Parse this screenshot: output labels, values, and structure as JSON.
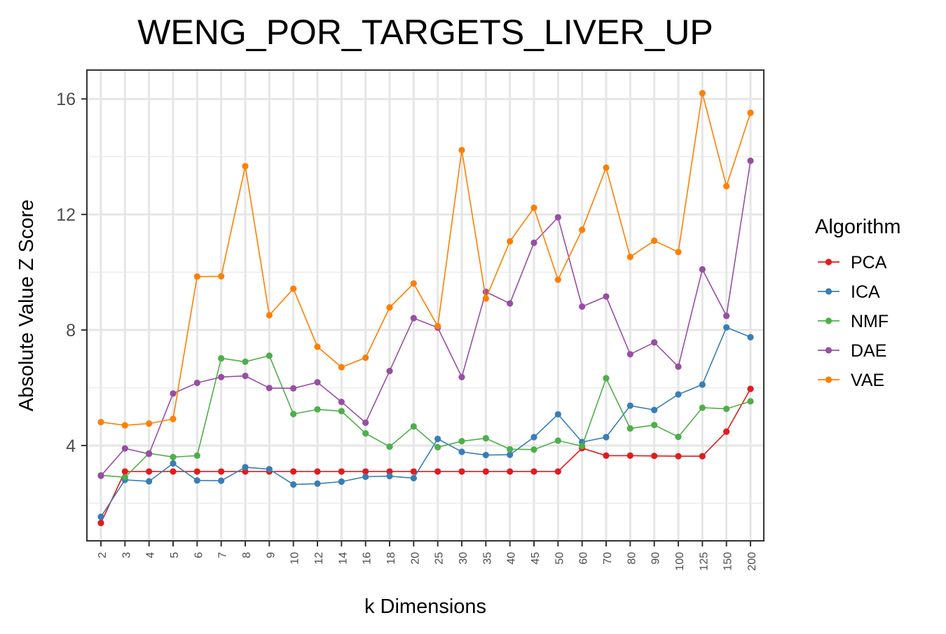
{
  "chart_data": {
    "type": "line",
    "title": "WENG_POR_TARGETS_LIVER_UP",
    "xlabel": "k Dimensions",
    "ylabel": "Absolute Value Z Score",
    "categories": [
      "2",
      "3",
      "4",
      "5",
      "6",
      "7",
      "8",
      "9",
      "10",
      "12",
      "14",
      "16",
      "18",
      "20",
      "25",
      "30",
      "35",
      "40",
      "45",
      "50",
      "60",
      "70",
      "80",
      "90",
      "100",
      "125",
      "150",
      "200"
    ],
    "ylim": [
      0.7,
      17
    ],
    "yticks": [
      4,
      8,
      12,
      16
    ],
    "grid": true,
    "legend": {
      "title": "Algorithm",
      "position": "right"
    },
    "series": [
      {
        "name": "PCA",
        "color": "#E41A1C",
        "values": [
          1.32,
          3.1,
          3.1,
          3.1,
          3.1,
          3.1,
          3.1,
          3.1,
          3.1,
          3.1,
          3.1,
          3.1,
          3.1,
          3.1,
          3.1,
          3.1,
          3.1,
          3.1,
          3.1,
          3.1,
          3.91,
          3.65,
          3.65,
          3.64,
          3.63,
          3.63,
          4.48,
          5.96
        ]
      },
      {
        "name": "ICA",
        "color": "#377EB8",
        "values": [
          1.53,
          2.81,
          2.76,
          3.38,
          2.79,
          2.78,
          3.25,
          3.18,
          2.65,
          2.68,
          2.75,
          2.92,
          2.94,
          2.87,
          4.23,
          3.78,
          3.67,
          3.68,
          4.29,
          5.08,
          4.12,
          4.29,
          5.38,
          5.23,
          5.77,
          6.11,
          8.09,
          7.75
        ]
      },
      {
        "name": "NMF",
        "color": "#4DAF4A",
        "values": [
          2.97,
          2.9,
          3.73,
          3.6,
          3.65,
          7.02,
          6.9,
          7.11,
          5.09,
          5.25,
          5.19,
          4.42,
          3.96,
          4.66,
          3.94,
          4.15,
          4.25,
          3.87,
          3.86,
          4.17,
          3.98,
          6.33,
          4.59,
          4.71,
          4.3,
          5.31,
          5.27,
          5.53
        ]
      },
      {
        "name": "DAE",
        "color": "#984EA3",
        "values": [
          2.95,
          3.9,
          3.71,
          5.8,
          6.17,
          6.37,
          6.41,
          5.99,
          5.98,
          6.19,
          5.51,
          4.79,
          6.58,
          8.41,
          8.08,
          6.37,
          9.32,
          8.92,
          11.02,
          11.9,
          8.81,
          9.16,
          7.16,
          7.57,
          6.73,
          10.1,
          8.49,
          13.86
        ]
      },
      {
        "name": "VAE",
        "color": "#FF7F00",
        "values": [
          4.81,
          4.7,
          4.76,
          4.92,
          9.85,
          9.86,
          13.67,
          8.51,
          9.43,
          7.42,
          6.71,
          7.04,
          8.78,
          9.61,
          8.13,
          14.23,
          9.09,
          11.07,
          12.23,
          9.74,
          11.47,
          13.62,
          10.53,
          11.09,
          10.7,
          16.2,
          12.98,
          15.52
        ]
      }
    ]
  }
}
